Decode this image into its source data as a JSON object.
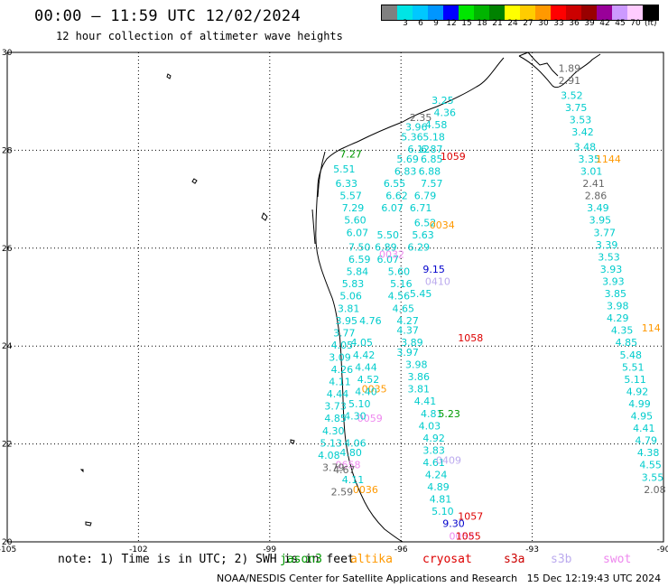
{
  "header": {
    "title": "00:00 – 11:59 UTC 12/02/2024",
    "subtitle": "12 hour collection of altimeter wave heights"
  },
  "colorbar": {
    "unit": "(ft)",
    "items": [
      {
        "label": "",
        "color": "#808080"
      },
      {
        "label": "3",
        "color": "#00e5e5"
      },
      {
        "label": "6",
        "color": "#00c8ff"
      },
      {
        "label": "9",
        "color": "#0096ff"
      },
      {
        "label": "12",
        "color": "#0000ff"
      },
      {
        "label": "15",
        "color": "#00e600"
      },
      {
        "label": "18",
        "color": "#00b400"
      },
      {
        "label": "21",
        "color": "#008200"
      },
      {
        "label": "24",
        "color": "#ffff00"
      },
      {
        "label": "27",
        "color": "#ffcc00"
      },
      {
        "label": "30",
        "color": "#ff9900"
      },
      {
        "label": "33",
        "color": "#ff0000"
      },
      {
        "label": "36",
        "color": "#cc0000"
      },
      {
        "label": "39",
        "color": "#990000"
      },
      {
        "label": "42",
        "color": "#990099"
      },
      {
        "label": "45",
        "color": "#cc99ff"
      },
      {
        "label": "70",
        "color": "#ffccff"
      },
      {
        "label": "",
        "color": "#000000"
      }
    ]
  },
  "map": {
    "lon_labels": [
      "-105",
      "-102",
      "-99",
      "-96",
      "-93",
      "-90"
    ],
    "lat_labels": [
      "30",
      "28",
      "26",
      "24",
      "22",
      "20"
    ],
    "lon_range": [
      -105,
      -90
    ],
    "lat_range": [
      20,
      30
    ],
    "grid": true,
    "colors": {
      "cyan": "#00cccc",
      "gray": "#666666",
      "orange": "#ff9900",
      "red": "#dd0000",
      "lavender": "#bbaaee",
      "pink": "#ee88ee",
      "green": "#009900",
      "blue": "#0000cc"
    },
    "track_labels": [
      {
        "t": "1.89",
        "lon": -92.4,
        "lat": 29.6,
        "c": "gray"
      },
      {
        "t": "2.91",
        "lon": -92.4,
        "lat": 29.35,
        "c": "gray"
      },
      {
        "t": "3.52",
        "lon": -92.35,
        "lat": 29.05,
        "c": "cyan"
      },
      {
        "t": "3.75",
        "lon": -92.25,
        "lat": 28.8,
        "c": "cyan"
      },
      {
        "t": "3.53",
        "lon": -92.15,
        "lat": 28.55,
        "c": "cyan"
      },
      {
        "t": "3.42",
        "lon": -92.1,
        "lat": 28.3,
        "c": "cyan"
      },
      {
        "t": "3.48",
        "lon": -92.05,
        "lat": 28.0,
        "c": "cyan"
      },
      {
        "t": "3.35",
        "lon": -91.95,
        "lat": 27.75,
        "c": "cyan"
      },
      {
        "t": "3.01",
        "lon": -91.9,
        "lat": 27.5,
        "c": "cyan"
      },
      {
        "t": "2.41",
        "lon": -91.85,
        "lat": 27.25,
        "c": "gray"
      },
      {
        "t": "2.86",
        "lon": -91.8,
        "lat": 27.0,
        "c": "gray"
      },
      {
        "t": "3.49",
        "lon": -91.75,
        "lat": 26.75,
        "c": "cyan"
      },
      {
        "t": "3.95",
        "lon": -91.7,
        "lat": 26.5,
        "c": "cyan"
      },
      {
        "t": "3.77",
        "lon": -91.6,
        "lat": 26.25,
        "c": "cyan"
      },
      {
        "t": "3.39",
        "lon": -91.55,
        "lat": 26.0,
        "c": "cyan"
      },
      {
        "t": "3.53",
        "lon": -91.5,
        "lat": 25.75,
        "c": "cyan"
      },
      {
        "t": "3.93",
        "lon": -91.45,
        "lat": 25.5,
        "c": "cyan"
      },
      {
        "t": "3.93",
        "lon": -91.4,
        "lat": 25.25,
        "c": "cyan"
      },
      {
        "t": "3.85",
        "lon": -91.35,
        "lat": 25.0,
        "c": "cyan"
      },
      {
        "t": "3.98",
        "lon": -91.3,
        "lat": 24.75,
        "c": "cyan"
      },
      {
        "t": "4.29",
        "lon": -91.3,
        "lat": 24.5,
        "c": "cyan"
      },
      {
        "t": "4.35",
        "lon": -91.2,
        "lat": 24.25,
        "c": "cyan"
      },
      {
        "t": "4.85",
        "lon": -91.1,
        "lat": 24.0,
        "c": "cyan"
      },
      {
        "t": "5.48",
        "lon": -91.0,
        "lat": 23.75,
        "c": "cyan"
      },
      {
        "t": "5.51",
        "lon": -90.95,
        "lat": 23.5,
        "c": "cyan"
      },
      {
        "t": "5.11",
        "lon": -90.9,
        "lat": 23.25,
        "c": "cyan"
      },
      {
        "t": "4.92",
        "lon": -90.85,
        "lat": 23.0,
        "c": "cyan"
      },
      {
        "t": "4.99",
        "lon": -90.8,
        "lat": 22.75,
        "c": "cyan"
      },
      {
        "t": "4.95",
        "lon": -90.75,
        "lat": 22.5,
        "c": "cyan"
      },
      {
        "t": "4.41",
        "lon": -90.7,
        "lat": 22.25,
        "c": "cyan"
      },
      {
        "t": "4.79",
        "lon": -90.65,
        "lat": 22.0,
        "c": "cyan"
      },
      {
        "t": "4.38",
        "lon": -90.6,
        "lat": 21.75,
        "c": "cyan"
      },
      {
        "t": "4.55",
        "lon": -90.55,
        "lat": 21.5,
        "c": "cyan"
      },
      {
        "t": "3.55",
        "lon": -90.5,
        "lat": 21.25,
        "c": "cyan"
      },
      {
        "t": "2.08",
        "lon": -90.45,
        "lat": 21.0,
        "c": "gray"
      },
      {
        "t": "1144",
        "lon": -91.55,
        "lat": 27.75,
        "c": "orange"
      },
      {
        "t": "114",
        "lon": -90.5,
        "lat": 24.3,
        "c": "orange"
      },
      {
        "t": "3.25",
        "lon": -95.3,
        "lat": 28.95,
        "c": "cyan"
      },
      {
        "t": "4.36",
        "lon": -95.25,
        "lat": 28.7,
        "c": "cyan"
      },
      {
        "t": "4.58",
        "lon": -95.45,
        "lat": 28.45,
        "c": "cyan"
      },
      {
        "t": "2.35",
        "lon": -95.8,
        "lat": 28.6,
        "c": "gray"
      },
      {
        "t": "3.96",
        "lon": -95.9,
        "lat": 28.4,
        "c": "cyan"
      },
      {
        "t": "5.36",
        "lon": -96.0,
        "lat": 28.2,
        "c": "cyan"
      },
      {
        "t": "5.18",
        "lon": -95.5,
        "lat": 28.2,
        "c": "cyan"
      },
      {
        "t": "6.12",
        "lon": -95.85,
        "lat": 27.95,
        "c": "cyan"
      },
      {
        "t": "6.87",
        "lon": -95.55,
        "lat": 27.95,
        "c": "cyan"
      },
      {
        "t": "5.69",
        "lon": -96.1,
        "lat": 27.75,
        "c": "cyan"
      },
      {
        "t": "6.85",
        "lon": -95.55,
        "lat": 27.75,
        "c": "cyan"
      },
      {
        "t": "6.83",
        "lon": -96.15,
        "lat": 27.5,
        "c": "cyan"
      },
      {
        "t": "6.88",
        "lon": -95.6,
        "lat": 27.5,
        "c": "cyan"
      },
      {
        "t": "7.57",
        "lon": -95.55,
        "lat": 27.25,
        "c": "cyan"
      },
      {
        "t": "6.55",
        "lon": -96.4,
        "lat": 27.25,
        "c": "cyan"
      },
      {
        "t": "6.62",
        "lon": -96.35,
        "lat": 27.0,
        "c": "cyan"
      },
      {
        "t": "6.79",
        "lon": -95.7,
        "lat": 27.0,
        "c": "cyan"
      },
      {
        "t": "6.07",
        "lon": -96.45,
        "lat": 26.75,
        "c": "cyan"
      },
      {
        "t": "6.71",
        "lon": -95.8,
        "lat": 26.75,
        "c": "cyan"
      },
      {
        "t": "6.52",
        "lon": -95.7,
        "lat": 26.45,
        "c": "cyan"
      },
      {
        "t": "5.63",
        "lon": -95.75,
        "lat": 26.2,
        "c": "cyan"
      },
      {
        "t": "5.50",
        "lon": -96.55,
        "lat": 26.2,
        "c": "cyan"
      },
      {
        "t": "6.89",
        "lon": -96.6,
        "lat": 25.95,
        "c": "cyan"
      },
      {
        "t": "6.29",
        "lon": -95.85,
        "lat": 25.95,
        "c": "cyan"
      },
      {
        "t": "6.07",
        "lon": -96.55,
        "lat": 25.7,
        "c": "cyan"
      },
      {
        "t": "9.15",
        "lon": -95.5,
        "lat": 25.5,
        "c": "blue"
      },
      {
        "t": "5.60",
        "lon": -96.3,
        "lat": 25.45,
        "c": "cyan"
      },
      {
        "t": "5.16",
        "lon": -96.25,
        "lat": 25.2,
        "c": "cyan"
      },
      {
        "t": "5.45",
        "lon": -95.8,
        "lat": 25.0,
        "c": "cyan"
      },
      {
        "t": "4.56",
        "lon": -96.3,
        "lat": 24.95,
        "c": "cyan"
      },
      {
        "t": "4.65",
        "lon": -96.2,
        "lat": 24.7,
        "c": "cyan"
      },
      {
        "t": "4.27",
        "lon": -96.1,
        "lat": 24.45,
        "c": "cyan"
      },
      {
        "t": "4.37",
        "lon": -96.1,
        "lat": 24.25,
        "c": "cyan"
      },
      {
        "t": "3.89",
        "lon": -96.0,
        "lat": 24.0,
        "c": "cyan"
      },
      {
        "t": "3.97",
        "lon": -96.1,
        "lat": 23.8,
        "c": "cyan"
      },
      {
        "t": "3.98",
        "lon": -95.9,
        "lat": 23.55,
        "c": "cyan"
      },
      {
        "t": "3.86",
        "lon": -95.85,
        "lat": 23.3,
        "c": "cyan"
      },
      {
        "t": "3.81",
        "lon": -95.85,
        "lat": 23.05,
        "c": "cyan"
      },
      {
        "t": "4.41",
        "lon": -95.7,
        "lat": 22.8,
        "c": "cyan"
      },
      {
        "t": "4.81",
        "lon": -95.55,
        "lat": 22.55,
        "c": "cyan"
      },
      {
        "t": "5.23",
        "lon": -95.15,
        "lat": 22.55,
        "c": "green"
      },
      {
        "t": "4.03",
        "lon": -95.6,
        "lat": 22.3,
        "c": "cyan"
      },
      {
        "t": "4.92",
        "lon": -95.5,
        "lat": 22.05,
        "c": "cyan"
      },
      {
        "t": "3.83",
        "lon": -95.5,
        "lat": 21.8,
        "c": "cyan"
      },
      {
        "t": "4.61",
        "lon": -95.5,
        "lat": 21.55,
        "c": "cyan"
      },
      {
        "t": "4.24",
        "lon": -95.45,
        "lat": 21.3,
        "c": "cyan"
      },
      {
        "t": "4.89",
        "lon": -95.4,
        "lat": 21.05,
        "c": "cyan"
      },
      {
        "t": "4.81",
        "lon": -95.35,
        "lat": 20.8,
        "c": "cyan"
      },
      {
        "t": "5.10",
        "lon": -95.3,
        "lat": 20.55,
        "c": "cyan"
      },
      {
        "t": "9.30",
        "lon": -95.05,
        "lat": 20.3,
        "c": "blue"
      },
      {
        "t": "0058",
        "lon": -94.9,
        "lat": 20.05,
        "c": "pink"
      },
      {
        "t": "1055",
        "lon": -94.75,
        "lat": 20.05,
        "c": "red"
      },
      {
        "t": "1057",
        "lon": -94.7,
        "lat": 20.45,
        "c": "red"
      },
      {
        "t": "1059",
        "lon": -95.1,
        "lat": 27.8,
        "c": "red"
      },
      {
        "t": "1058",
        "lon": -94.7,
        "lat": 24.1,
        "c": "red"
      },
      {
        "t": "0034",
        "lon": -95.35,
        "lat": 26.4,
        "c": "orange"
      },
      {
        "t": "0035",
        "lon": -96.9,
        "lat": 23.05,
        "c": "orange"
      },
      {
        "t": "0036",
        "lon": -97.1,
        "lat": 21.0,
        "c": "orange"
      },
      {
        "t": "0409",
        "lon": -95.2,
        "lat": 21.6,
        "c": "lavender"
      },
      {
        "t": "0410",
        "lon": -95.45,
        "lat": 25.25,
        "c": "lavender"
      },
      {
        "t": "0032",
        "lon": -96.5,
        "lat": 25.8,
        "c": "pink"
      },
      {
        "t": "0059",
        "lon": -97.0,
        "lat": 22.45,
        "c": "pink"
      },
      {
        "t": "0658",
        "lon": -97.5,
        "lat": 21.5,
        "c": "pink"
      },
      {
        "t": "7.27",
        "lon": -97.4,
        "lat": 27.85,
        "c": "green"
      },
      {
        "t": "5.51",
        "lon": -97.55,
        "lat": 27.55,
        "c": "cyan"
      },
      {
        "t": "6.33",
        "lon": -97.5,
        "lat": 27.25,
        "c": "cyan"
      },
      {
        "t": "5.57",
        "lon": -97.4,
        "lat": 27.0,
        "c": "cyan"
      },
      {
        "t": "7.29",
        "lon": -97.35,
        "lat": 26.75,
        "c": "cyan"
      },
      {
        "t": "5.60",
        "lon": -97.3,
        "lat": 26.5,
        "c": "cyan"
      },
      {
        "t": "6.07",
        "lon": -97.25,
        "lat": 26.25,
        "c": "cyan"
      },
      {
        "t": "7.50",
        "lon": -97.2,
        "lat": 25.95,
        "c": "cyan"
      },
      {
        "t": "6.59",
        "lon": -97.2,
        "lat": 25.7,
        "c": "cyan"
      },
      {
        "t": "5.84",
        "lon": -97.25,
        "lat": 25.45,
        "c": "cyan"
      },
      {
        "t": "5.83",
        "lon": -97.35,
        "lat": 25.2,
        "c": "cyan"
      },
      {
        "t": "5.06",
        "lon": -97.4,
        "lat": 24.95,
        "c": "cyan"
      },
      {
        "t": "3.81",
        "lon": -97.45,
        "lat": 24.7,
        "c": "cyan"
      },
      {
        "t": "3.95",
        "lon": -97.5,
        "lat": 24.45,
        "c": "cyan"
      },
      {
        "t": "3.77",
        "lon": -97.55,
        "lat": 24.2,
        "c": "cyan"
      },
      {
        "t": "4.05",
        "lon": -97.6,
        "lat": 23.95,
        "c": "cyan"
      },
      {
        "t": "3.09",
        "lon": -97.65,
        "lat": 23.7,
        "c": "cyan"
      },
      {
        "t": "4.26",
        "lon": -97.6,
        "lat": 23.45,
        "c": "cyan"
      },
      {
        "t": "4.11",
        "lon": -97.65,
        "lat": 23.2,
        "c": "cyan"
      },
      {
        "t": "4.44",
        "lon": -97.7,
        "lat": 22.95,
        "c": "cyan"
      },
      {
        "t": "3.73",
        "lon": -97.75,
        "lat": 22.7,
        "c": "cyan"
      },
      {
        "t": "4.85",
        "lon": -97.75,
        "lat": 22.45,
        "c": "cyan"
      },
      {
        "t": "4.30",
        "lon": -97.8,
        "lat": 22.2,
        "c": "cyan"
      },
      {
        "t": "5.13",
        "lon": -97.85,
        "lat": 21.95,
        "c": "cyan"
      },
      {
        "t": "4.08",
        "lon": -97.9,
        "lat": 21.7,
        "c": "cyan"
      },
      {
        "t": "3.79",
        "lon": -97.8,
        "lat": 21.45,
        "c": "gray"
      },
      {
        "t": "4.67",
        "lon": -97.55,
        "lat": 21.4,
        "c": "gray"
      },
      {
        "t": "4.11",
        "lon": -97.35,
        "lat": 21.2,
        "c": "cyan"
      },
      {
        "t": "2.59",
        "lon": -97.6,
        "lat": 20.95,
        "c": "gray"
      },
      {
        "t": "4.05",
        "lon": -97.15,
        "lat": 24.0,
        "c": "cyan"
      },
      {
        "t": "4.42",
        "lon": -97.1,
        "lat": 23.75,
        "c": "cyan"
      },
      {
        "t": "4.44",
        "lon": -97.05,
        "lat": 23.5,
        "c": "cyan"
      },
      {
        "t": "4.52",
        "lon": -97.0,
        "lat": 23.25,
        "c": "cyan"
      },
      {
        "t": "4.40",
        "lon": -97.05,
        "lat": 23.0,
        "c": "cyan"
      },
      {
        "t": "5.10",
        "lon": -97.2,
        "lat": 22.75,
        "c": "cyan"
      },
      {
        "t": "4.30",
        "lon": -97.3,
        "lat": 22.5,
        "c": "cyan"
      },
      {
        "t": "4.06",
        "lon": -97.3,
        "lat": 21.95,
        "c": "cyan"
      },
      {
        "t": "4.80",
        "lon": -97.4,
        "lat": 21.75,
        "c": "cyan"
      },
      {
        "t": "4.76",
        "lon": -96.95,
        "lat": 24.45,
        "c": "cyan"
      }
    ]
  },
  "notes": {
    "prefix": "note: 1) Time is in UTC; 2) SWH is in feet",
    "sats": [
      {
        "name": "jason3",
        "color": "#009900"
      },
      {
        "name": "altika",
        "color": "#ff9900"
      },
      {
        "name": "cryosat",
        "color": "#dd0000"
      },
      {
        "name": "s3a",
        "color": "#cc0000"
      },
      {
        "name": "s3b",
        "color": "#bbaaee"
      },
      {
        "name": "swot",
        "color": "#ee88ee"
      }
    ]
  },
  "footer": "NOAA/NESDIS Center for Satellite Applications and Research   15 Dec 12:19:43 UTC 2024"
}
